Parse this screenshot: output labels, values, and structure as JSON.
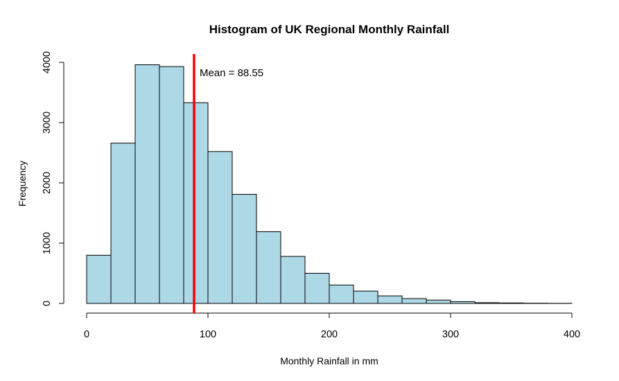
{
  "chart_data": {
    "type": "bar",
    "title": "Histogram of UK Regional Monthly Rainfall",
    "xlabel": "Monthly Rainfall in mm",
    "ylabel": "Frequency",
    "xlim": [
      0,
      400
    ],
    "ylim": [
      0,
      4000
    ],
    "x_ticks": [
      0,
      100,
      200,
      300,
      400
    ],
    "y_ticks": [
      0,
      1000,
      2000,
      3000,
      4000
    ],
    "bin_edges": [
      0,
      20,
      40,
      60,
      80,
      100,
      120,
      140,
      160,
      180,
      200,
      220,
      240,
      260,
      280,
      300,
      320,
      340,
      360,
      380,
      400
    ],
    "values": [
      800,
      2660,
      3960,
      3930,
      3330,
      2520,
      1810,
      1190,
      780,
      500,
      305,
      205,
      125,
      80,
      55,
      30,
      12,
      8,
      4,
      2
    ],
    "bar_color": "#add8e6",
    "grid": false,
    "annotations": [
      {
        "type": "vline",
        "x": 88.55,
        "color": "#ff0000",
        "text": "Mean = 88.55"
      }
    ]
  }
}
